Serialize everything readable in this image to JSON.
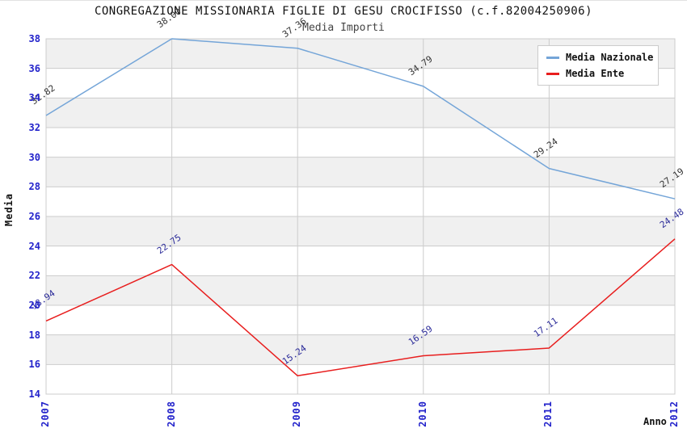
{
  "header": {
    "title": "CONGREGAZIONE MISSIONARIA FIGLIE DI GESU CROCIFISSO (c.f.82004250906)",
    "subtitle": "Media Importi"
  },
  "chart_data": {
    "type": "line",
    "title": "CONGREGAZIONE MISSIONARIA FIGLIE DI GESU CROCIFISSO (c.f.82004250906)",
    "subtitle": "Media Importi",
    "x": [
      "2007",
      "2008",
      "2009",
      "2010",
      "2011",
      "2012"
    ],
    "series": [
      {
        "name": "Media Nazionale",
        "color": "#74a5d8",
        "label_color": "#333333",
        "values": [
          32.82,
          38.0,
          37.36,
          34.79,
          29.24,
          27.19
        ]
      },
      {
        "name": "Media Ente",
        "color": "#e81e1e",
        "label_color": "#2b2b99",
        "values": [
          18.94,
          22.75,
          15.24,
          16.59,
          17.11,
          24.48
        ]
      }
    ],
    "xlabel": "Anno",
    "ylabel": "Media",
    "ylim": [
      14,
      38
    ],
    "ytick_step": 2,
    "grid": true,
    "legend_position": "top-right",
    "band_colors": [
      "#f0f0f0",
      "#ffffff"
    ],
    "grid_color": "#cccccc",
    "tick_label_color": "#2323cb",
    "value_label_format": "2-decimals"
  }
}
